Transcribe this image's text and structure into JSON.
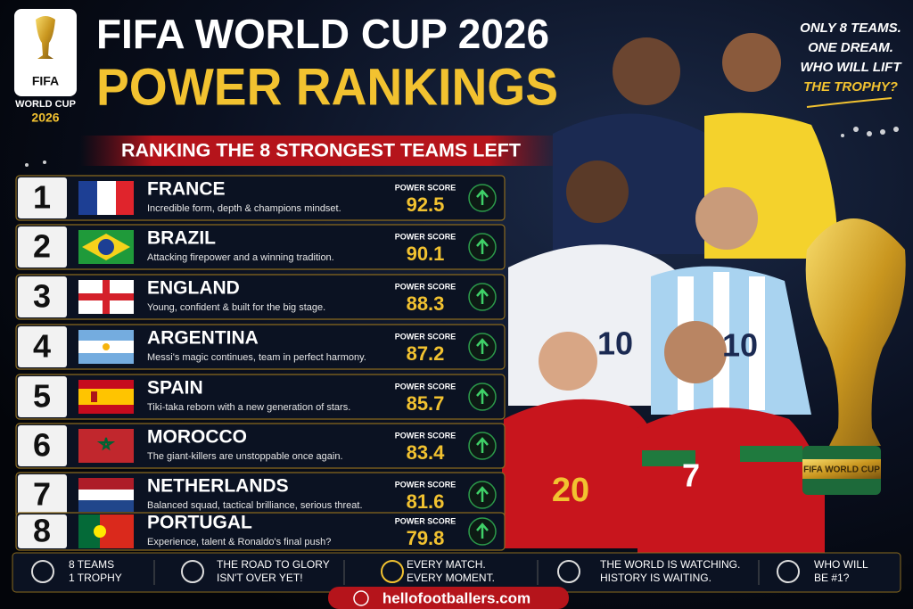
{
  "logo": {
    "brand": "FIFA",
    "line1": "WORLD CUP",
    "line2": "2026"
  },
  "header": {
    "title_line1": "FIFA WORLD CUP 2026",
    "title_line2": "POWER RANKINGS",
    "subtitle": "RANKING THE 8 STRONGEST TEAMS LEFT"
  },
  "tagline": {
    "lines": [
      "ONLY 8 TEAMS.",
      "ONE DREAM.",
      "WHO WILL LIFT"
    ],
    "highlight": "THE TROPHY?"
  },
  "rankings": [
    {
      "rank": 1,
      "team": "FRANCE",
      "description": "Incredible form, depth & champions mindset.",
      "score_label": "POWER SCORE",
      "score": 92.5
    },
    {
      "rank": 2,
      "team": "BRAZIL",
      "description": "Attacking firepower and a winning tradition.",
      "score_label": "POWER SCORE",
      "score": 90.1
    },
    {
      "rank": 3,
      "team": "ENGLAND",
      "description": "Young, confident & built for the big stage.",
      "score_label": "POWER SCORE",
      "score": 88.3
    },
    {
      "rank": 4,
      "team": "ARGENTINA",
      "description": "Messi's magic continues, team in perfect harmony.",
      "score_label": "POWER SCORE",
      "score": 87.2
    },
    {
      "rank": 5,
      "team": "SPAIN",
      "description": "Tiki-taka reborn with a new generation of stars.",
      "score_label": "POWER SCORE",
      "score": 85.7
    },
    {
      "rank": 6,
      "team": "MOROCCO",
      "description": "The giant-killers are unstoppable once again.",
      "score_label": "POWER SCORE",
      "score": 83.4
    },
    {
      "rank": 7,
      "team": "NETHERLANDS",
      "description": "Balanced squad, tactical brilliance, serious threat.",
      "score_label": "POWER SCORE",
      "score": 81.6
    },
    {
      "rank": 8,
      "team": "PORTUGAL",
      "description": "Experience, talent & Ronaldo's final push?",
      "score_label": "POWER SCORE",
      "score": 79.8
    }
  ],
  "jersey_numbers": [
    "10",
    "10",
    "20",
    "7"
  ],
  "trophy_text": "FIFA WORLD CUP",
  "footer": {
    "items": [
      [
        "8 TEAMS",
        "1 TROPHY"
      ],
      [
        "THE ROAD TO GLORY",
        "ISN'T OVER YET!"
      ],
      [
        "EVERY MATCH.",
        "EVERY MOMENT."
      ],
      [
        "THE WORLD IS WATCHING.",
        "HISTORY IS WAITING."
      ],
      [
        "WHO WILL",
        "BE #1?"
      ]
    ],
    "website": "hellofootballers.com"
  }
}
